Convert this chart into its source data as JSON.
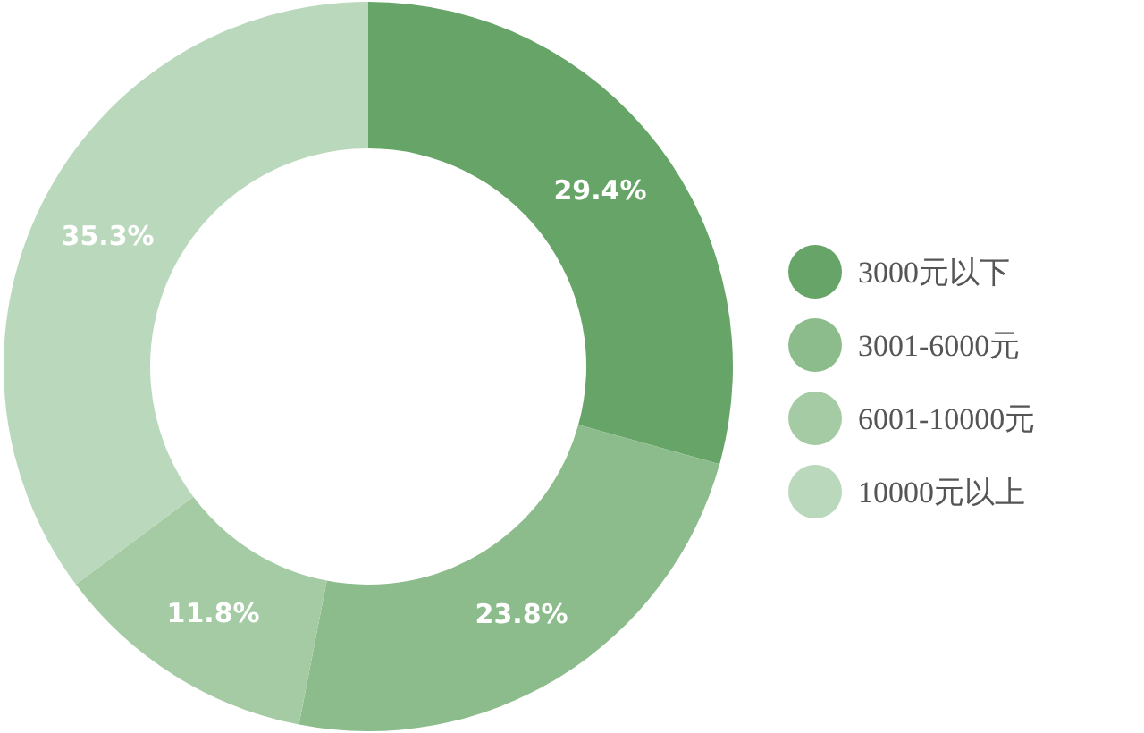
{
  "chart_data": {
    "type": "donut",
    "categories": [
      "3000元以下",
      "3001-6000元",
      "6001-10000元",
      "10000元以上"
    ],
    "values": [
      29.4,
      23.8,
      11.8,
      35.3
    ],
    "colors": [
      "#66a567",
      "#8dbc8c",
      "#a4cba3",
      "#bad8bb"
    ],
    "value_labels": [
      "29.4%",
      "23.8%",
      "11.8%",
      "35.3%"
    ],
    "legend": "right"
  }
}
